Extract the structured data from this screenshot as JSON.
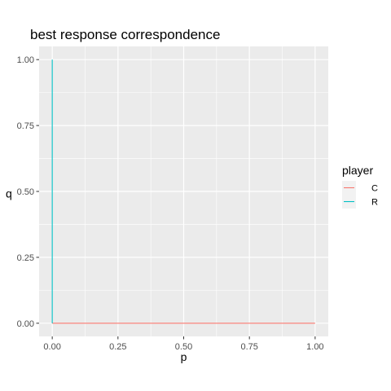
{
  "chart_data": {
    "type": "line",
    "title": "best response correspondence",
    "xlabel": "p",
    "ylabel": "q",
    "xlim": [
      -0.05,
      1.05
    ],
    "ylim": [
      -0.05,
      1.05
    ],
    "x_ticks": [
      0.0,
      0.25,
      0.5,
      0.75,
      1.0
    ],
    "x_tick_labels": [
      "0.00",
      "0.25",
      "0.50",
      "0.75",
      "1.00"
    ],
    "y_ticks": [
      0.0,
      0.25,
      0.5,
      0.75,
      1.0
    ],
    "y_tick_labels": [
      "0.00",
      "0.25",
      "0.50",
      "0.75",
      "1.00"
    ],
    "grid": true,
    "legend": {
      "title": "player",
      "position": "right"
    },
    "series": [
      {
        "name": "C",
        "color": "#F8766D",
        "points": [
          [
            0,
            0
          ],
          [
            1,
            0
          ]
        ]
      },
      {
        "name": "R",
        "color": "#00BFC4",
        "points": [
          [
            0,
            0
          ],
          [
            0,
            1
          ]
        ]
      }
    ]
  }
}
